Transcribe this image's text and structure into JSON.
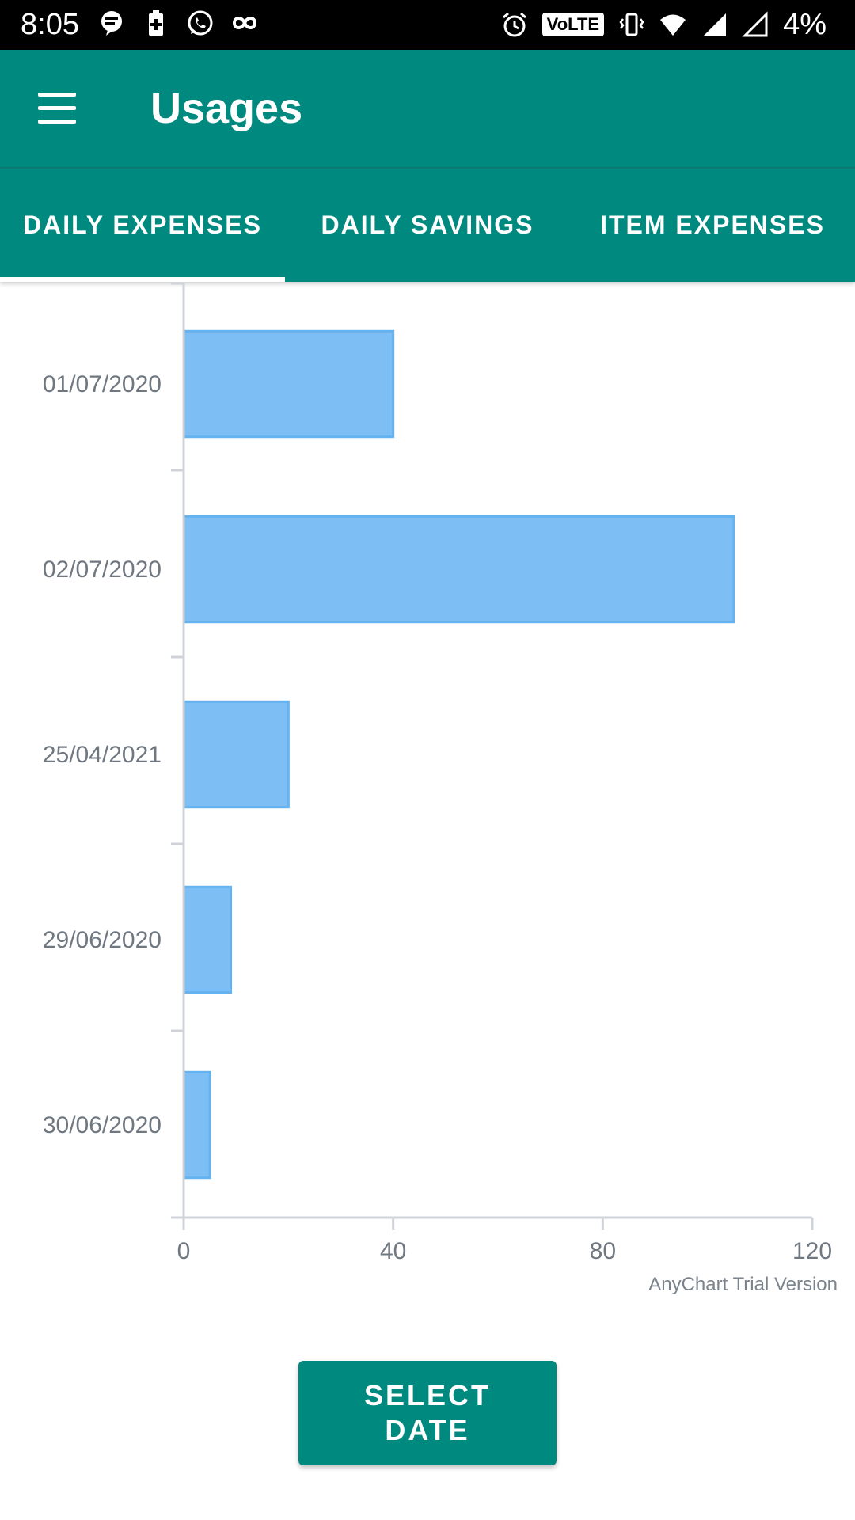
{
  "status_bar": {
    "time": "8:05",
    "battery": "4%",
    "volte": "VoLTE",
    "icons": [
      "message-icon",
      "battery-saver-icon",
      "whatsapp-icon",
      "infinity-icon",
      "alarm-icon",
      "vibrate-icon",
      "wifi-icon",
      "signal-icon",
      "signal-empty-icon"
    ]
  },
  "app_bar": {
    "title": "Usages",
    "menu_icon": "hamburger-menu-icon"
  },
  "tabs": [
    {
      "label": "DAILY EXPENSES",
      "selected": true
    },
    {
      "label": "DAILY SAVINGS",
      "selected": false
    },
    {
      "label": "ITEM EXPENSES",
      "selected": false
    }
  ],
  "chart_data": {
    "type": "bar",
    "orientation": "horizontal",
    "categories": [
      "01/07/2020",
      "02/07/2020",
      "25/04/2021",
      "29/06/2020",
      "30/06/2020"
    ],
    "values": [
      40,
      105,
      20,
      9,
      5
    ],
    "xlim": [
      0,
      120
    ],
    "x_ticks": [
      "0",
      "40",
      "80",
      "120"
    ],
    "bar_color": "#7dbff5",
    "bar_border_color": "#64b2f0",
    "credit": "AnyChart Trial Version"
  },
  "button": {
    "select_date_label": "SELECT DATE"
  },
  "colors": {
    "primary": "#00897f",
    "status_bar": "#000000"
  }
}
